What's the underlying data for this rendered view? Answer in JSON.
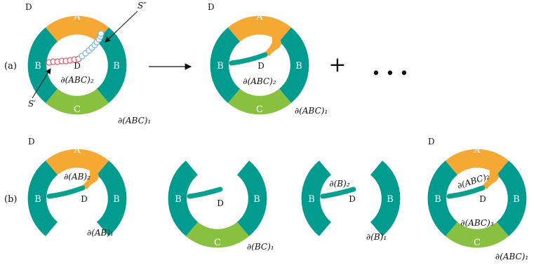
{
  "colors": {
    "region_a": "#f5a834",
    "region_b": "#019c8f",
    "region_c": "#88c03f",
    "region_text": "#ffffff",
    "string_red": "#e06070",
    "string_blue": "#6fb6e8",
    "string_teal": "#0a9f8e",
    "string_orange": "#f39c2a",
    "ink": "#111111"
  },
  "row_a": {
    "label": "(a)",
    "panel1": {
      "corner": "D",
      "region_a": "A",
      "region_b_left": "B",
      "region_b_right": "B",
      "region_c": "C",
      "center_d": "D",
      "inner_boundary": "∂(ABC)₂",
      "outer_boundary": "∂(ABC)₁",
      "s_prime": "S′",
      "s_double_prime": "S″"
    },
    "panel2": {
      "corner": "D",
      "region_a": "A",
      "region_b_left": "B",
      "region_b_right": "B",
      "region_c": "C",
      "center_d": "D",
      "inner_boundary": "∂(ABC)₂",
      "outer_boundary": "∂(ABC)₁"
    },
    "plus": "+",
    "ellipsis": "• • •"
  },
  "row_b": {
    "label": "(b)",
    "panel1": {
      "corner": "D",
      "region_a": "A",
      "region_b_left": "B",
      "region_b_right": "B",
      "center_d": "D",
      "inner_boundary": "∂(AB)₂",
      "outer_boundary": "∂(AB)₁"
    },
    "panel2": {
      "region_b_left": "B",
      "region_b_right": "B",
      "region_c": "C",
      "center_d": "D",
      "outer_boundary": "∂(BC)₁"
    },
    "panel3": {
      "region_b_left": "B",
      "region_b_right": "B",
      "center_d": "D",
      "inner_boundary": "∂(B)₂",
      "outer_boundary": "∂(B)₁"
    },
    "panel4": {
      "corner": "D",
      "region_a": "A",
      "region_b_left": "B",
      "region_b_right": "B",
      "region_c": "C",
      "center_d": "D",
      "inner_boundary": "∂(ABC)₂",
      "mid_boundary": "∂(ABC)₃",
      "outer_boundary": "∂(ABC)₁"
    }
  }
}
